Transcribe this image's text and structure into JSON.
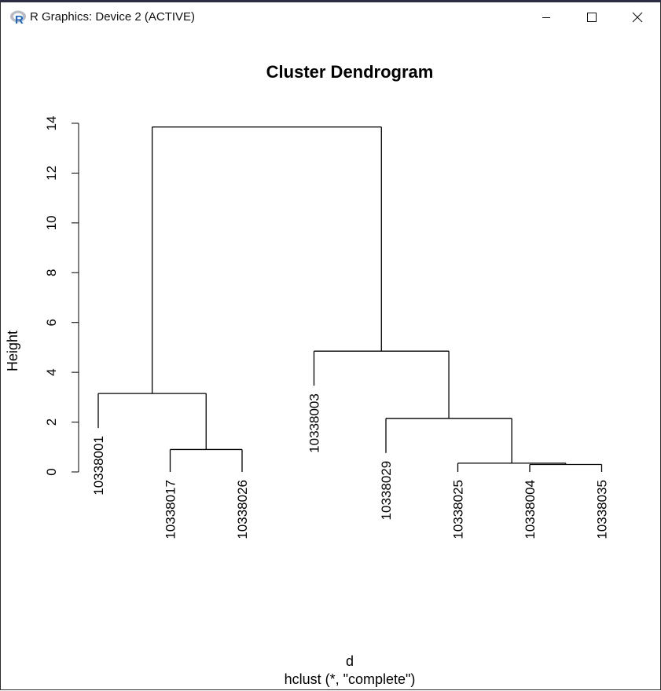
{
  "window": {
    "title": "R Graphics: Device 2 (ACTIVE)",
    "icon": "r-logo-icon",
    "controls": [
      "minimize-icon",
      "maximize-icon",
      "close-icon"
    ]
  },
  "chart_data": {
    "type": "dendrogram",
    "title": "Cluster Dendrogram",
    "xlabel": "d",
    "sub": "hclust (*, \"complete\")",
    "ylabel": "Height",
    "ylim": [
      0,
      14
    ],
    "yticks": [
      "0",
      "2",
      "4",
      "6",
      "8",
      "10",
      "12",
      "14"
    ],
    "leaves": [
      "10338001",
      "10338017",
      "10338026",
      "10338003",
      "10338029",
      "10338025",
      "10338004",
      "10338035"
    ],
    "merges": [
      {
        "left": "10338017",
        "right": "10338026",
        "height": 0.9
      },
      {
        "left": "10338001",
        "right": "node1",
        "height": 3.15
      },
      {
        "left": "10338004",
        "right": "10338035",
        "height": 0.3
      },
      {
        "left": "10338025",
        "right": "node3",
        "height": 0.35
      },
      {
        "left": "10338029",
        "right": "node4",
        "height": 2.15
      },
      {
        "left": "10338003",
        "right": "node5",
        "height": 4.85
      },
      {
        "left": "node2",
        "right": "node6",
        "height": 13.85
      }
    ]
  }
}
